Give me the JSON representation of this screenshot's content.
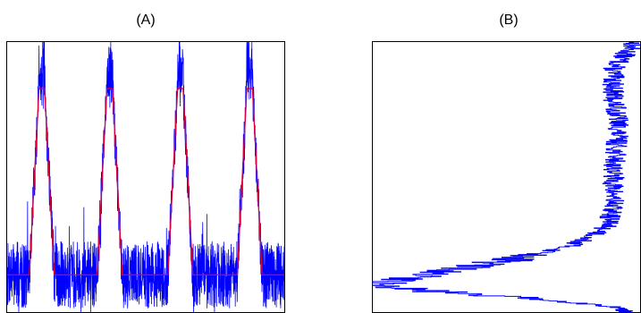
{
  "chart_data": [
    {
      "type": "line",
      "title": "(A)",
      "xlabel": "",
      "ylabel": "",
      "ticks_shown": false,
      "grid": false,
      "xlim": [
        0,
        1000
      ],
      "ylim": [
        -0.2,
        1.25
      ],
      "colors": {
        "noisy": "#0000ff",
        "fit": "#e0003c"
      },
      "series": [
        {
          "kind": "noisy-signal",
          "baseline": 0.0,
          "baseline_noise_amplitude": 0.18,
          "peak_noise_amplitude": 0.14,
          "peak_overshoot": 1.2
        },
        {
          "kind": "trapezoid-fit",
          "x": [
            0,
            80,
            115,
            135,
            170,
            325,
            360,
            380,
            415,
            580,
            615,
            635,
            670,
            830,
            865,
            885,
            920,
            1000
          ],
          "y": [
            0,
            0,
            1,
            1,
            0,
            0,
            1,
            1,
            0,
            0,
            1,
            1,
            0,
            0,
            1,
            1,
            0,
            0
          ]
        }
      ]
    },
    {
      "type": "line",
      "title": "(B)",
      "xlabel": "",
      "ylabel": "",
      "ticks_shown": false,
      "grid": false,
      "orientation": "horizontal-profile",
      "colors": {
        "line": "#0000ff"
      },
      "series": [
        {
          "kind": "profile",
          "y_fraction": [
            0.0,
            0.1,
            0.2,
            0.3,
            0.4,
            0.5,
            0.6,
            0.68,
            0.72,
            0.76,
            0.8,
            0.85,
            0.88,
            0.9,
            0.92,
            0.95,
            0.98,
            1.0
          ],
          "x_fraction": [
            0.98,
            0.9,
            0.9,
            0.92,
            0.91,
            0.9,
            0.9,
            0.88,
            0.82,
            0.72,
            0.55,
            0.25,
            0.1,
            0.0,
            0.2,
            0.6,
            0.92,
            0.96
          ],
          "noise_amplitude": 0.04
        }
      ]
    }
  ]
}
